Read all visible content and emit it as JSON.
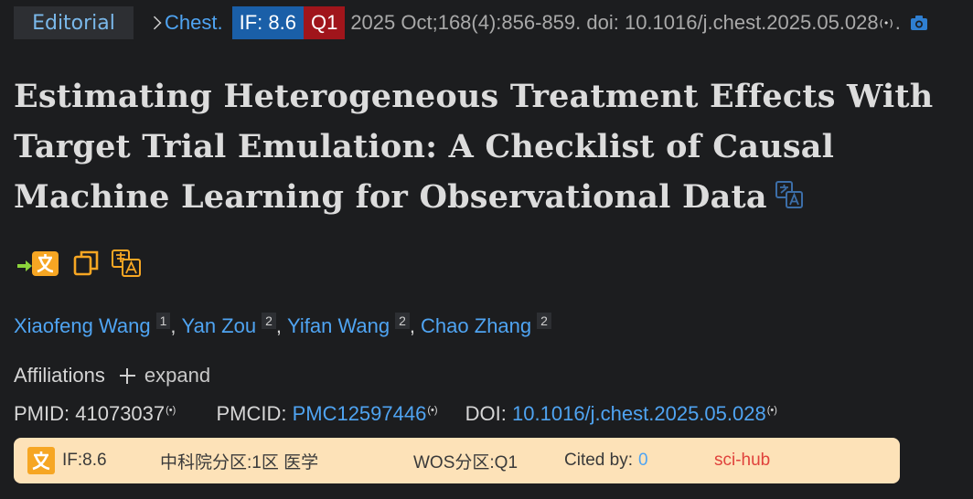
{
  "header": {
    "article_type": "Editorial",
    "journal": "Chest.",
    "impact_factor_badge": "IF: 8.6",
    "quartile_badge": "Q1",
    "citation": "2025 Oct;168(4):856-859. doi: 10.1016/j.chest.2025.05.028",
    "period": "."
  },
  "title": "Estimating Heterogeneous Treatment Effects With Target Trial Emulation: A Checklist of Causal Machine Learning for Observational Data",
  "authors": [
    {
      "name": "Xiaofeng Wang",
      "aff": "1"
    },
    {
      "name": "Yan Zou",
      "aff": "2"
    },
    {
      "name": "Yifan Wang",
      "aff": "2"
    },
    {
      "name": "Chao Zhang",
      "aff": "2"
    }
  ],
  "affiliations": {
    "label": "Affiliations",
    "expand_label": "expand"
  },
  "identifiers": {
    "pmid_label": "PMID:",
    "pmid": "41073037",
    "pmcid_label": "PMCID:",
    "pmcid": "PMC12597446",
    "doi_label": "DOI:",
    "doi": "10.1016/j.chest.2025.05.028"
  },
  "infobar": {
    "if": "IF:8.6",
    "cas": "中科院分区:1区 医学",
    "wos": "WOS分区:Q1",
    "cited_label": "Cited by:",
    "cited_count": "0",
    "scihub": "sci-hub"
  },
  "icons": {
    "signal": "signal-icon",
    "camera": "camera-icon",
    "translate": "translate-icon",
    "copy": "copy-icon",
    "plus": "plus-icon"
  },
  "colors": {
    "background": "#1c1d1f",
    "link": "#4fa4f2",
    "if_badge": "#1a5fa8",
    "q1_badge": "#a0151b",
    "infobar_bg": "#fde2b8",
    "scihub": "#e0423c",
    "tool_orange": "#f6a623"
  }
}
